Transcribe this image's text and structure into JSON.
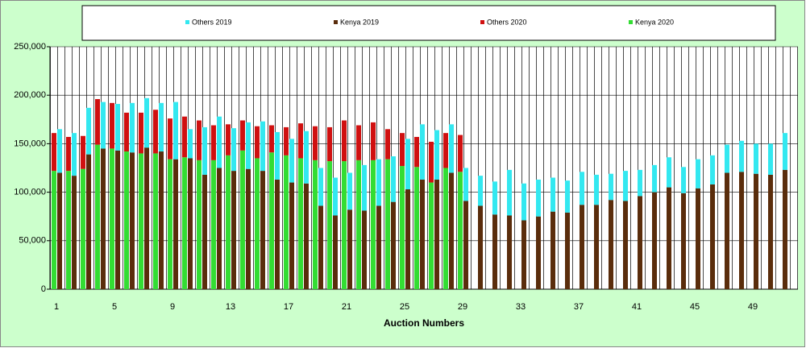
{
  "chart_data": {
    "type": "stacked-bar",
    "xlabel": "Auction Numbers",
    "categories": [
      "1",
      null,
      null,
      null,
      "5",
      null,
      null,
      null,
      "9",
      null,
      null,
      null,
      "13",
      null,
      null,
      null,
      "17",
      null,
      null,
      null,
      "21",
      null,
      null,
      null,
      "25",
      null,
      null,
      null,
      "29",
      null,
      null,
      null,
      "33",
      null,
      null,
      null,
      "37",
      null,
      null,
      null,
      "41",
      null,
      null,
      null,
      "45",
      null,
      null,
      null,
      "49",
      null,
      null
    ],
    "series": [
      {
        "name": "Others 2019",
        "color": "#33e8f0",
        "group": "2019",
        "values": [
          45000,
          44000,
          48000,
          48000,
          48000,
          51000,
          51000,
          50000,
          59000,
          30000,
          49000,
          53000,
          44000,
          48000,
          51000,
          49000,
          45000,
          54000,
          39000,
          39000,
          38000,
          47000,
          48000,
          47000,
          52000,
          57000,
          51000,
          50000,
          34000,
          31000,
          34000,
          47000,
          38000,
          38000,
          35000,
          33000,
          34000,
          31000,
          27000,
          31000,
          27000,
          28000,
          31000,
          27000,
          30000,
          30000,
          29000,
          32000,
          31000,
          32000,
          38000
        ]
      },
      {
        "name": "Kenya 2019",
        "color": "#5a2d0c",
        "group": "2019",
        "values": [
          120000,
          117000,
          139000,
          145000,
          143000,
          141000,
          146000,
          142000,
          134000,
          135000,
          118000,
          125000,
          122000,
          124000,
          122000,
          113000,
          110000,
          109000,
          86000,
          76000,
          82000,
          81000,
          86000,
          90000,
          103000,
          113000,
          113000,
          120000,
          91000,
          86000,
          77000,
          76000,
          71000,
          75000,
          80000,
          79000,
          87000,
          87000,
          92000,
          91000,
          96000,
          100000,
          105000,
          99000,
          104000,
          108000,
          120000,
          121000,
          119000,
          118000,
          123000
        ]
      },
      {
        "name": "Others 2020",
        "color": "#d01010",
        "group": "2020",
        "values": [
          39000,
          35000,
          34000,
          47000,
          47000,
          40000,
          42000,
          45000,
          42000,
          42000,
          41000,
          36000,
          32000,
          31000,
          33000,
          28000,
          29000,
          36000,
          35000,
          35000,
          42000,
          36000,
          39000,
          31000,
          34000,
          31000,
          42000,
          36000,
          38000,
          null,
          null,
          null,
          null,
          null,
          null,
          null,
          null,
          null,
          null,
          null,
          null,
          null,
          null,
          null,
          null,
          null,
          null,
          null,
          null,
          null,
          null
        ]
      },
      {
        "name": "Kenya 2020",
        "color": "#33dd33",
        "group": "2020",
        "values": [
          122000,
          122000,
          124000,
          149000,
          145000,
          142000,
          140000,
          140000,
          134000,
          136000,
          133000,
          133000,
          138000,
          143000,
          135000,
          141000,
          138000,
          135000,
          133000,
          132000,
          132000,
          133000,
          133000,
          134000,
          127000,
          126000,
          110000,
          125000,
          121000,
          null,
          null,
          null,
          null,
          null,
          null,
          null,
          null,
          null,
          null,
          null,
          null,
          null,
          null,
          null,
          null,
          null,
          null,
          null,
          null,
          null,
          null
        ]
      }
    ],
    "ylim": [
      0,
      250000
    ],
    "yticks": [
      0,
      {
        "value": 50000,
        "label": "50,000"
      },
      {
        "value": 100000,
        "label": "100,000"
      },
      {
        "value": 150000,
        "label": "150,000"
      },
      {
        "value": 200000,
        "label": "200,000"
      },
      {
        "value": 250000,
        "label": "250,000"
      }
    ]
  }
}
